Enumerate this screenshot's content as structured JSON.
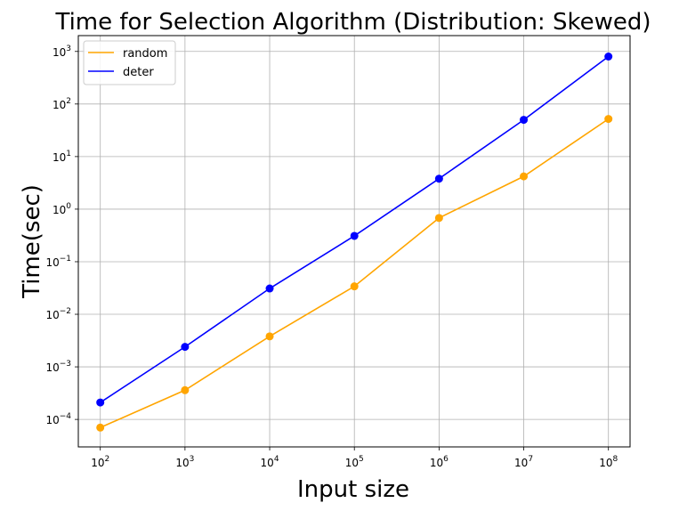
{
  "chart_data": {
    "type": "line",
    "title": "Time for Selection Algorithm (Distribution: Skewed)",
    "xlabel": "Input size",
    "ylabel": "Time(sec)",
    "xscale": "log",
    "yscale": "log",
    "xlim": [
      55,
      180000000
    ],
    "ylim": [
      3e-05,
      2000
    ],
    "x": [
      100,
      1000,
      10000,
      100000,
      1000000,
      10000000,
      100000000
    ],
    "x_ticks": [
      {
        "value": 100,
        "base": "10",
        "exp": "2"
      },
      {
        "value": 1000,
        "base": "10",
        "exp": "3"
      },
      {
        "value": 10000,
        "base": "10",
        "exp": "4"
      },
      {
        "value": 100000,
        "base": "10",
        "exp": "5"
      },
      {
        "value": 1000000,
        "base": "10",
        "exp": "6"
      },
      {
        "value": 10000000,
        "base": "10",
        "exp": "7"
      },
      {
        "value": 100000000,
        "base": "10",
        "exp": "8"
      }
    ],
    "y_ticks": [
      {
        "value": 0.0001,
        "base": "10",
        "exp": "−4"
      },
      {
        "value": 0.001,
        "base": "10",
        "exp": "−3"
      },
      {
        "value": 0.01,
        "base": "10",
        "exp": "−2"
      },
      {
        "value": 0.1,
        "base": "10",
        "exp": "−1"
      },
      {
        "value": 1,
        "base": "10",
        "exp": "0"
      },
      {
        "value": 10,
        "base": "10",
        "exp": "1"
      },
      {
        "value": 100,
        "base": "10",
        "exp": "2"
      },
      {
        "value": 1000,
        "base": "10",
        "exp": "3"
      }
    ],
    "grid": true,
    "legend_position": "top-left",
    "series": [
      {
        "name": "random",
        "color": "#ffa500",
        "values": [
          7e-05,
          0.00036,
          0.0038,
          0.034,
          0.68,
          4.2,
          52
        ]
      },
      {
        "name": "deter",
        "color": "#0000ff",
        "values": [
          0.00021,
          0.0024,
          0.031,
          0.31,
          3.8,
          50,
          800
        ]
      }
    ]
  }
}
